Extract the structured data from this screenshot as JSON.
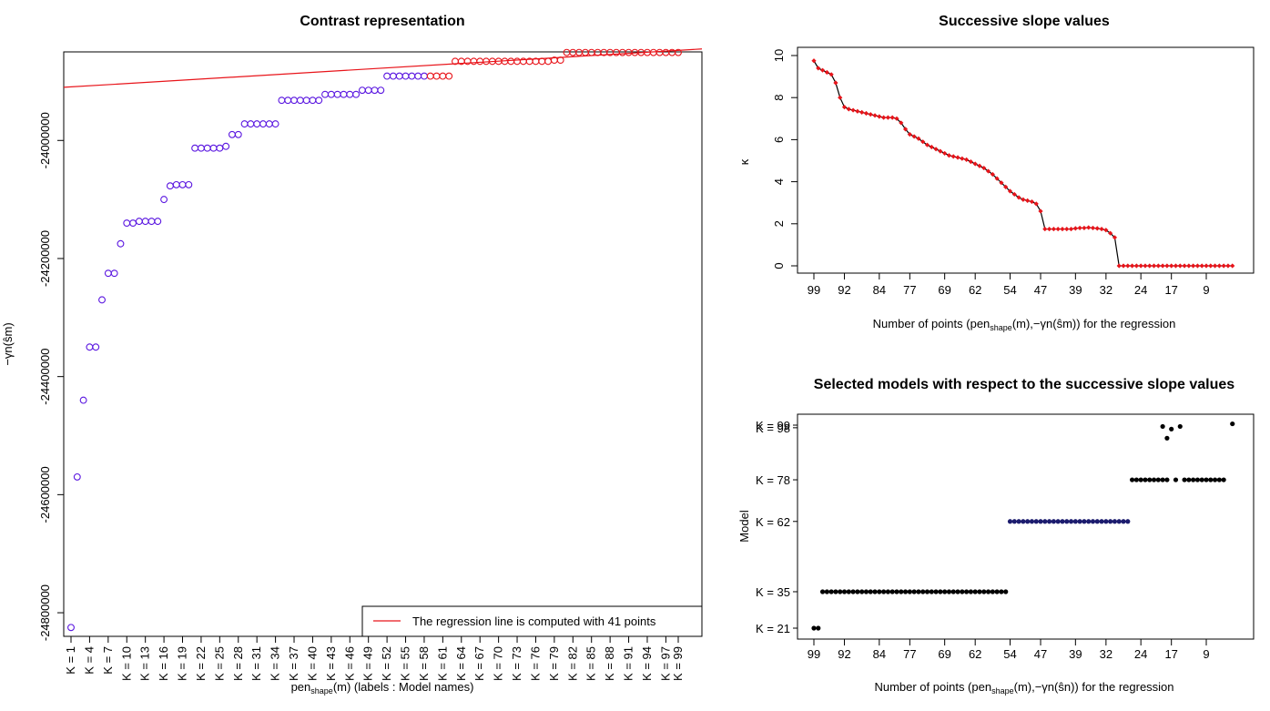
{
  "chart_data": [
    {
      "type": "scatter",
      "title": "Contrast representation",
      "xlabel_main": "pen",
      "xlabel_sub": "shape",
      "xlabel_rest": "(m) (labels : Model names)",
      "ylabel": "−γn(ŝm)",
      "ylim": [
        -24840000,
        -23850000
      ],
      "yticks": [
        "-24000000",
        "-24200000",
        "-24400000",
        "-24600000",
        "-24800000"
      ],
      "ytick_values": [
        -24000000,
        -24200000,
        -24400000,
        -24600000,
        -24800000
      ],
      "xtick_labels": [
        "K = 1",
        "K = 4",
        "K = 7",
        "K = 10",
        "K = 13",
        "K = 16",
        "K = 19",
        "K = 22",
        "K = 25",
        "K = 28",
        "K = 31",
        "K = 34",
        "K = 37",
        "K = 40",
        "K = 43",
        "K = 46",
        "K = 49",
        "K = 52",
        "K = 55",
        "K = 58",
        "K = 61",
        "K = 64",
        "K = 67",
        "K = 70",
        "K = 73",
        "K = 76",
        "K = 79",
        "K = 82",
        "K = 85",
        "K = 88",
        "K = 91",
        "K = 94",
        "K = 97",
        "K = 99"
      ],
      "xtick_models": [
        1,
        4,
        7,
        10,
        13,
        16,
        19,
        22,
        25,
        28,
        31,
        34,
        37,
        40,
        43,
        46,
        49,
        52,
        55,
        58,
        61,
        64,
        67,
        70,
        73,
        76,
        79,
        82,
        85,
        88,
        91,
        94,
        97,
        99
      ],
      "points": [
        [
          1,
          -24825000
        ],
        [
          2,
          -24570000
        ],
        [
          3,
          -24440000
        ],
        [
          4,
          -24350000
        ],
        [
          5,
          -24350000
        ],
        [
          6,
          -24270000
        ],
        [
          7,
          -24225000
        ],
        [
          8,
          -24225000
        ],
        [
          9,
          -24175000
        ],
        [
          10,
          -24140000
        ],
        [
          11,
          -24140000
        ],
        [
          12,
          -24137000
        ],
        [
          13,
          -24137000
        ],
        [
          14,
          -24137000
        ],
        [
          15,
          -24137000
        ],
        [
          16,
          -24100000
        ],
        [
          17,
          -24077000
        ],
        [
          18,
          -24075000
        ],
        [
          19,
          -24075000
        ],
        [
          20,
          -24075000
        ],
        [
          21,
          -24013000
        ],
        [
          22,
          -24013000
        ],
        [
          23,
          -24013000
        ],
        [
          24,
          -24013000
        ],
        [
          25,
          -24013000
        ],
        [
          26,
          -24010000
        ],
        [
          27,
          -23990000
        ],
        [
          28,
          -23990000
        ],
        [
          29,
          -23972000
        ],
        [
          30,
          -23972000
        ],
        [
          31,
          -23972000
        ],
        [
          32,
          -23972000
        ],
        [
          33,
          -23972000
        ],
        [
          34,
          -23972000
        ],
        [
          35,
          -23932000
        ],
        [
          36,
          -23932000
        ],
        [
          37,
          -23932000
        ],
        [
          38,
          -23932000
        ],
        [
          39,
          -23932000
        ],
        [
          40,
          -23932000
        ],
        [
          41,
          -23932000
        ],
        [
          42,
          -23922000
        ],
        [
          43,
          -23922000
        ],
        [
          44,
          -23922000
        ],
        [
          45,
          -23922000
        ],
        [
          46,
          -23922000
        ],
        [
          47,
          -23922000
        ],
        [
          48,
          -23915000
        ],
        [
          49,
          -23915000
        ],
        [
          50,
          -23915000
        ],
        [
          51,
          -23915000
        ],
        [
          52,
          -23891000
        ],
        [
          53,
          -23891000
        ],
        [
          54,
          -23891000
        ],
        [
          55,
          -23891000
        ],
        [
          56,
          -23891000
        ],
        [
          57,
          -23891000
        ],
        [
          58,
          -23891000
        ],
        [
          59,
          -23891000
        ],
        [
          60,
          -23891000
        ],
        [
          61,
          -23891000
        ],
        [
          62,
          -23891000
        ],
        [
          63,
          -23866000
        ],
        [
          64,
          -23866000
        ],
        [
          65,
          -23866000
        ],
        [
          66,
          -23866000
        ],
        [
          67,
          -23866000
        ],
        [
          68,
          -23866000
        ],
        [
          69,
          -23866000
        ],
        [
          70,
          -23866000
        ],
        [
          71,
          -23866000
        ],
        [
          72,
          -23866000
        ],
        [
          73,
          -23866000
        ],
        [
          74,
          -23866000
        ],
        [
          75,
          -23866000
        ],
        [
          76,
          -23866000
        ],
        [
          77,
          -23866000
        ],
        [
          78,
          -23866000
        ],
        [
          79,
          -23864000
        ],
        [
          80,
          -23864000
        ],
        [
          81,
          -23851000
        ],
        [
          82,
          -23851000
        ],
        [
          83,
          -23851000
        ],
        [
          84,
          -23851000
        ],
        [
          85,
          -23851000
        ],
        [
          86,
          -23851000
        ],
        [
          87,
          -23851000
        ],
        [
          88,
          -23851000
        ],
        [
          89,
          -23851000
        ],
        [
          90,
          -23851000
        ],
        [
          91,
          -23851000
        ],
        [
          92,
          -23851000
        ],
        [
          93,
          -23851000
        ],
        [
          94,
          -23851000
        ],
        [
          95,
          -23851000
        ],
        [
          96,
          -23851000
        ],
        [
          97,
          -23851000
        ],
        [
          98,
          -23851000
        ],
        [
          99,
          -23851000
        ]
      ],
      "regression_from_model": 59,
      "regression_line": [
        [
          0,
          -23910000
        ],
        [
          101,
          -23845000
        ]
      ],
      "point_color": "#5a16e0",
      "regression_color": "#e8141a",
      "legend": {
        "label": "The regression line is computed with 41 points",
        "position": "bottom-right"
      }
    },
    {
      "type": "line",
      "title": "Successive slope values",
      "xlabel_main": "Number of points (pen",
      "xlabel_sub": "shape",
      "xlabel_rest": "(m),−γn(ŝm)) for the regression",
      "ylabel": "κ",
      "ylim": [
        0,
        10
      ],
      "yticks": [
        "0",
        "2",
        "4",
        "6",
        "8",
        "10"
      ],
      "xticks": [
        "99",
        "92",
        "84",
        "77",
        "69",
        "62",
        "54",
        "47",
        "39",
        "32",
        "24",
        "17",
        "9"
      ],
      "x_reversed": true,
      "x_range": [
        100,
        1
      ],
      "x": [
        99,
        98,
        97,
        96,
        95,
        94,
        93,
        92,
        91,
        90,
        89,
        88,
        87,
        86,
        85,
        84,
        83,
        82,
        81,
        80,
        79,
        78,
        77,
        76,
        75,
        74,
        73,
        72,
        71,
        70,
        69,
        68,
        67,
        66,
        65,
        64,
        63,
        62,
        61,
        60,
        59,
        58,
        57,
        56,
        55,
        54,
        53,
        52,
        51,
        50,
        49,
        48,
        47,
        46,
        45,
        44,
        43,
        42,
        41,
        40,
        39,
        38,
        37,
        36,
        35,
        34,
        33,
        32,
        31,
        30,
        29,
        28,
        27,
        26,
        25,
        24,
        23,
        22,
        21,
        20,
        19,
        18,
        17,
        16,
        15,
        14,
        13,
        12,
        11,
        10,
        9,
        8,
        7,
        6,
        5,
        4,
        3
      ],
      "values": [
        9.75,
        9.4,
        9.3,
        9.2,
        9.1,
        8.7,
        8.0,
        7.55,
        7.45,
        7.4,
        7.35,
        7.3,
        7.25,
        7.2,
        7.15,
        7.1,
        7.05,
        7.05,
        7.05,
        7.0,
        6.8,
        6.5,
        6.25,
        6.15,
        6.05,
        5.9,
        5.75,
        5.65,
        5.55,
        5.45,
        5.35,
        5.25,
        5.2,
        5.15,
        5.1,
        5.05,
        4.95,
        4.85,
        4.75,
        4.65,
        4.5,
        4.35,
        4.15,
        3.95,
        3.75,
        3.55,
        3.4,
        3.25,
        3.15,
        3.1,
        3.05,
        2.95,
        2.6,
        1.75,
        1.75,
        1.75,
        1.75,
        1.75,
        1.75,
        1.75,
        1.78,
        1.8,
        1.8,
        1.82,
        1.8,
        1.78,
        1.75,
        1.7,
        1.55,
        1.35,
        0,
        0,
        0,
        0,
        0,
        0,
        0,
        0,
        0,
        0,
        0,
        0,
        0,
        0,
        0,
        0,
        0,
        0,
        0,
        0,
        0,
        0,
        0,
        0,
        0,
        0,
        0
      ],
      "line_color": "#000000",
      "marker_color": "#e8141a"
    },
    {
      "type": "scatter",
      "title": "Selected models with respect to the successive slope values",
      "xlabel_main": "Number of points (pen",
      "xlabel_sub": "shape",
      "xlabel_rest": "(m),−γn(ŝn)) for the regression",
      "ylabel": "Model",
      "ylim": [
        19,
        100
      ],
      "yticks": [
        "K = 21",
        "K = 35",
        "K = 62",
        "K = 78",
        "K = 98",
        "K = 99"
      ],
      "ytick_values": [
        21,
        35,
        62,
        78,
        98,
        99
      ],
      "xticks": [
        "99",
        "92",
        "84",
        "77",
        "69",
        "62",
        "54",
        "47",
        "39",
        "32",
        "24",
        "17",
        "9"
      ],
      "x_reversed": true,
      "x_range": [
        100,
        1
      ],
      "groups": [
        {
          "model": 21,
          "x_from": 99,
          "x_to": 98,
          "color": "#000000"
        },
        {
          "model": 35,
          "x_from": 97,
          "x_to": 55,
          "color": "#000000"
        },
        {
          "model": 62,
          "x_from": 54,
          "x_to": 27,
          "color": "#1c1c6e"
        },
        {
          "model": 78,
          "x_from": 26,
          "x_to": 18,
          "color": "#000000"
        },
        {
          "model": 78,
          "x_from": 16,
          "x_to": 16,
          "color": "#000000"
        },
        {
          "model": 78,
          "x_from": 14,
          "x_to": 5,
          "color": "#000000"
        }
      ],
      "extra_points": [
        [
          19,
          98.5
        ],
        [
          18,
          94
        ],
        [
          17,
          97.5
        ],
        [
          15,
          98.5
        ],
        [
          3,
          99.5
        ]
      ]
    }
  ]
}
